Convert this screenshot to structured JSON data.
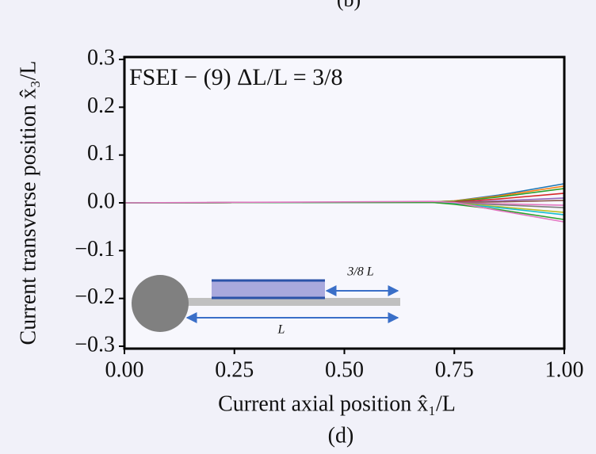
{
  "chart_data": {
    "type": "line",
    "top_caption": "(b)",
    "annotation": "FSEI − (9)  ΔL/L = 3/8",
    "xlabel": "Current axial position x̂₁/L",
    "ylabel": "Current transverse position x̂₃/L",
    "caption": "(d)",
    "x": [
      0,
      0.5,
      0.7,
      0.75,
      0.85,
      1.0
    ],
    "series": [
      {
        "color": "#1f77b4",
        "values": [
          0,
          0.001,
          0.002,
          0.004,
          0.016,
          0.04
        ]
      },
      {
        "color": "#ff7f0e",
        "values": [
          0,
          0.001,
          0.002,
          0.004,
          0.014,
          0.035
        ]
      },
      {
        "color": "#2ca02c",
        "values": [
          0,
          0.001,
          0.002,
          0.003,
          0.012,
          0.03
        ]
      },
      {
        "color": "#d62728",
        "values": [
          0,
          0.001,
          0.001,
          0.002,
          0.008,
          0.02
        ]
      },
      {
        "color": "#9467bd",
        "values": [
          0,
          0.001,
          0.001,
          0.001,
          0.004,
          0.01
        ]
      },
      {
        "color": "#8c564b",
        "values": [
          0,
          0.001,
          0.001,
          0.001,
          0.002,
          0.005
        ]
      },
      {
        "color": "#e377c2",
        "values": [
          0,
          0.001,
          0.001,
          0,
          -0.002,
          -0.005
        ]
      },
      {
        "color": "#7f7f7f",
        "values": [
          0,
          0.001,
          0.001,
          0,
          -0.004,
          -0.01
        ]
      },
      {
        "color": "#bcbd22",
        "values": [
          0,
          0.001,
          0.001,
          -0.001,
          -0.008,
          -0.02
        ]
      },
      {
        "color": "#17becf",
        "values": [
          0,
          0.001,
          0.001,
          -0.002,
          -0.01,
          -0.025
        ]
      },
      {
        "color": "#2ca02c",
        "values": [
          0,
          0.001,
          0.001,
          -0.003,
          -0.014,
          -0.035
        ]
      },
      {
        "color": "#e377c2",
        "values": [
          0,
          0.002,
          0.003,
          0.001,
          -0.016,
          -0.04
        ]
      }
    ],
    "xlim": [
      0,
      1
    ],
    "ylim": [
      -0.3,
      0.3
    ],
    "xticks": [
      {
        "value": 0,
        "label": "0.00"
      },
      0.25,
      {
        "value": 0.5,
        "label": "0.50"
      },
      0.75,
      {
        "value": 1,
        "label": "1.00"
      }
    ],
    "yticks": [
      {
        "value": -0.3,
        "label": "−0.3"
      },
      {
        "value": -0.2,
        "label": "−0.2"
      },
      {
        "value": -0.1,
        "label": "−0.1"
      },
      {
        "value": 0,
        "label": "0.0"
      },
      0.1,
      0.2,
      0.3
    ],
    "inset": {
      "overhang_label": "3/8 L",
      "length_label": "L"
    }
  }
}
